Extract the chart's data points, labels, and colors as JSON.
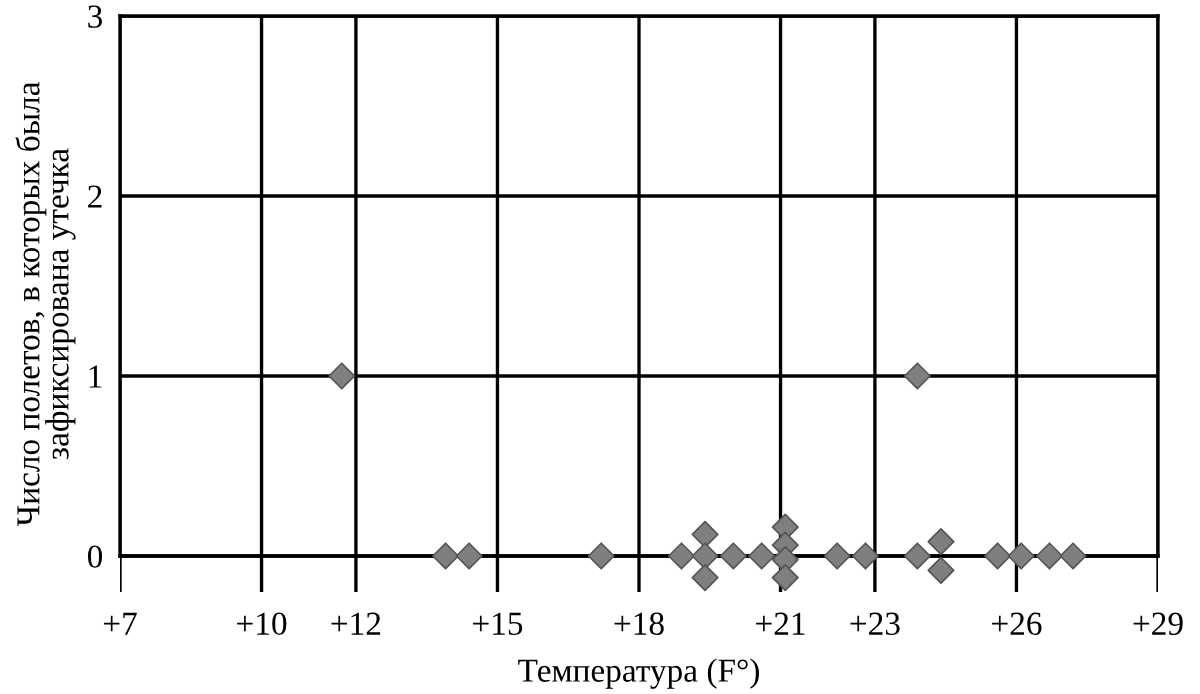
{
  "chart_data": {
    "type": "scatter",
    "xlabel": "Температура (F°)",
    "ylabel": "Число полетов, в которых была\nзафиксирована утечка",
    "series": [
      {
        "color": "#7f7f7f",
        "x": [
          11.7,
          23.9
        ],
        "values": [
          1,
          1
        ]
      },
      {
        "color": "#7f7f7f",
        "x": [
          13.9,
          14.4,
          17.2,
          18.9,
          19.4,
          19.4,
          19.4,
          20,
          20.6,
          21.1,
          21.1,
          21.1,
          21.1,
          22.2,
          22.8,
          23.9,
          24.4,
          24.4,
          25.6,
          26.1,
          26.7,
          27.2
        ],
        "values": [
          0,
          0,
          0,
          0,
          0.12,
          0,
          -0.12,
          0,
          0,
          0.16,
          0.06,
          -0.02,
          -0.12,
          0,
          0,
          0,
          0.08,
          -0.08,
          0,
          0,
          0,
          0
        ]
      }
    ],
    "xlim": [
      7,
      29
    ],
    "xticks": [
      {
        "value": 7,
        "label": "+7"
      },
      {
        "value": 10,
        "label": "+10"
      },
      {
        "value": 12,
        "label": "+12"
      },
      {
        "value": 15,
        "label": "+15"
      },
      {
        "value": 18,
        "label": "+18"
      },
      {
        "value": 21,
        "label": "+21"
      },
      {
        "value": 23,
        "label": "+23"
      },
      {
        "value": 26,
        "label": "+26"
      },
      {
        "value": 29,
        "label": "+29"
      }
    ],
    "ylim": [
      -0.2,
      3
    ],
    "yticks": [
      0,
      1,
      2,
      3
    ],
    "grid": true,
    "marker": "diamond"
  }
}
